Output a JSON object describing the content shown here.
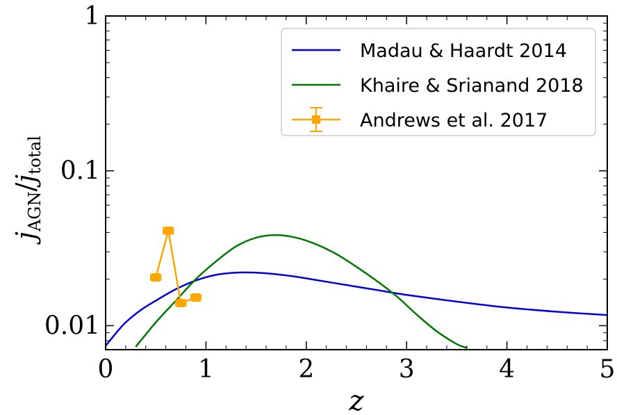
{
  "chart_data": {
    "type": "line",
    "title": "",
    "xlabel": "z",
    "ylabel": "j_AGN/j_total",
    "xlim": [
      0,
      5
    ],
    "ylim": [
      0.007,
      1
    ],
    "yscale": "log",
    "x_ticks": [
      {
        "value": 0,
        "label": "0"
      },
      {
        "value": 1,
        "label": "1"
      },
      {
        "value": 2,
        "label": "2"
      },
      {
        "value": 3,
        "label": "3"
      },
      {
        "value": 4,
        "label": "4"
      },
      {
        "value": 5,
        "label": "5"
      }
    ],
    "y_ticks": [
      {
        "value": 0.01,
        "label": "0.01"
      },
      {
        "value": 0.1,
        "label": "0.1"
      },
      {
        "value": 1,
        "label": "1"
      }
    ],
    "grid": false,
    "legend_position": "top-right",
    "series": [
      {
        "name": "Madau & Haardt 2014",
        "color": "#0000dd",
        "style": "line",
        "x": [
          0,
          0.1,
          0.2,
          0.35,
          0.5,
          0.7,
          0.9,
          1.1,
          1.3,
          1.5,
          1.7,
          1.9,
          2.1,
          2.4,
          2.7,
          3.0,
          3.5,
          4.0,
          4.5,
          5.0
        ],
        "y": [
          0.0074,
          0.0089,
          0.0105,
          0.0126,
          0.0145,
          0.0172,
          0.0196,
          0.0213,
          0.022,
          0.022,
          0.0215,
          0.0207,
          0.0197,
          0.0183,
          0.017,
          0.0158,
          0.0143,
          0.0131,
          0.0123,
          0.0117
        ]
      },
      {
        "name": "Khaire & Srianand 2018",
        "color": "#007700",
        "style": "line",
        "x": [
          0.3,
          0.5,
          0.7,
          0.9,
          1.1,
          1.3,
          1.5,
          1.7,
          1.9,
          2.1,
          2.3,
          2.5,
          2.7,
          2.9,
          3.1,
          3.3,
          3.5,
          3.6
        ],
        "y": [
          0.0073,
          0.0105,
          0.0145,
          0.02,
          0.026,
          0.0325,
          0.037,
          0.0385,
          0.037,
          0.0335,
          0.029,
          0.024,
          0.0195,
          0.0155,
          0.0118,
          0.0092,
          0.0076,
          0.0072
        ]
      },
      {
        "name": "Andrews et al. 2017",
        "color": "#ffa500",
        "style": "line-marker-errorbar",
        "marker": "square",
        "x": [
          0.5,
          0.625,
          0.75,
          0.9
        ],
        "y": [
          0.0205,
          0.041,
          0.014,
          0.0152
        ],
        "xerr": [
          0.05,
          0.05,
          0.05,
          0.05
        ],
        "yerr": [
          0.001,
          0.0015,
          0.0008,
          0.0008
        ]
      }
    ]
  }
}
